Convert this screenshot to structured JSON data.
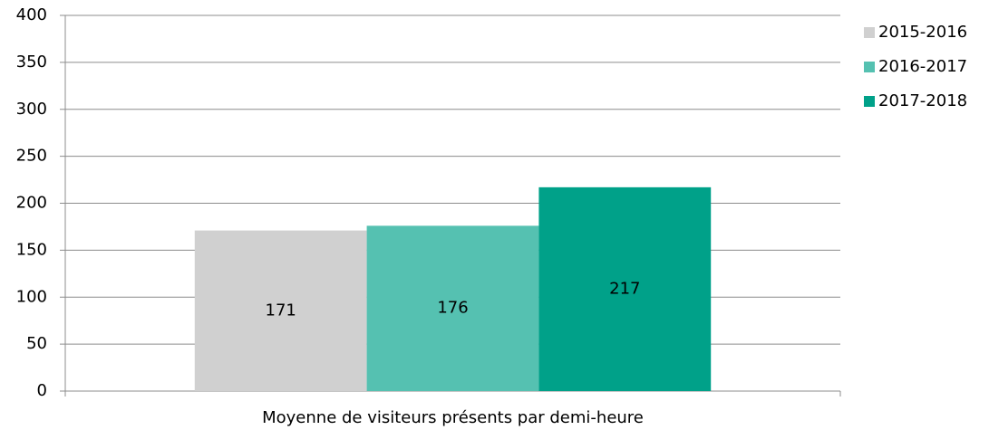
{
  "chart_data": {
    "type": "bar",
    "categories": [
      "Moyenne de visiteurs présents par demi-heure"
    ],
    "series": [
      {
        "name": "2015-2016",
        "color": "#d0d0d0",
        "values": [
          171
        ]
      },
      {
        "name": "2016-2017",
        "color": "#55c1b1",
        "values": [
          176
        ]
      },
      {
        "name": "2017-2018",
        "color": "#00a189",
        "values": [
          217
        ]
      }
    ],
    "ylim": [
      0,
      400
    ],
    "yticks": [
      0,
      50,
      100,
      150,
      200,
      250,
      300,
      350,
      400
    ],
    "grid": true,
    "legend": "right"
  }
}
